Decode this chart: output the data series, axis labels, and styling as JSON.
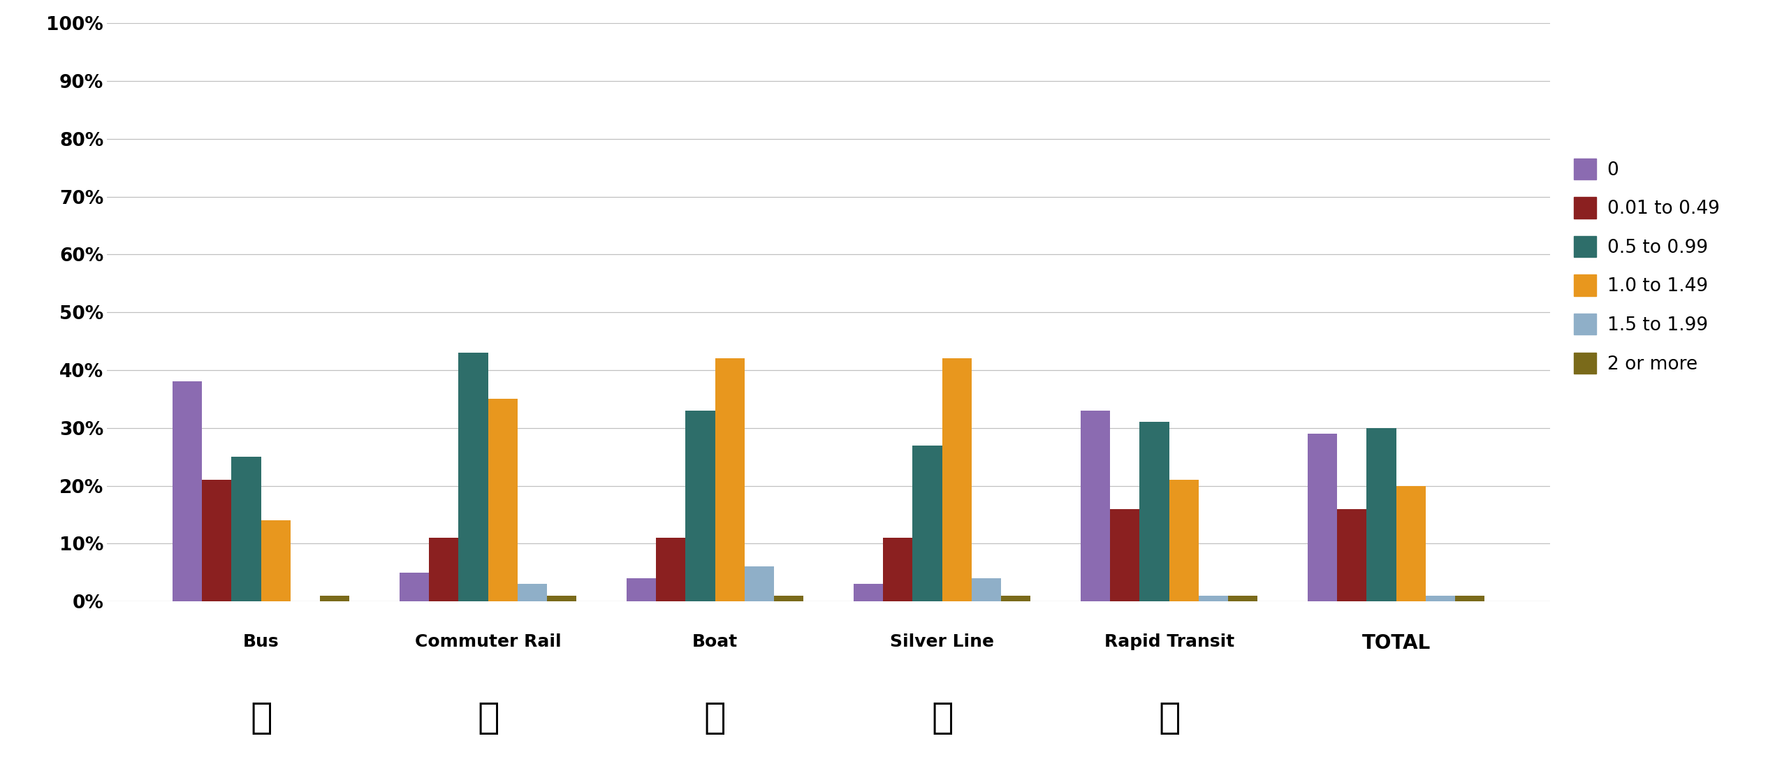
{
  "categories": [
    "Bus",
    "Commuter Rail",
    "Boat",
    "Silver Line",
    "Rapid Transit",
    "TOTAL"
  ],
  "series": {
    "0": [
      38,
      5,
      4,
      3,
      33,
      29
    ],
    "0.01 to 0.49": [
      21,
      11,
      11,
      11,
      16,
      16
    ],
    "0.5 to 0.99": [
      25,
      43,
      33,
      27,
      31,
      30
    ],
    "1.0 to 1.49": [
      14,
      35,
      42,
      42,
      21,
      20
    ],
    "1.5 to 1.99": [
      0,
      3,
      6,
      4,
      1,
      1
    ],
    "2 or more": [
      1,
      1,
      1,
      1,
      1,
      1
    ]
  },
  "colors": {
    "0": "#8B6BB1",
    "0.01 to 0.49": "#8B2020",
    "0.5 to 0.99": "#2E6E6A",
    "1.0 to 1.49": "#E8971E",
    "1.5 to 1.99": "#8FAFC8",
    "2 or more": "#7A6A1A"
  },
  "legend_labels": [
    "0",
    "0.01 to 0.49",
    "0.5 to 0.99",
    "1.0 to 1.49",
    "1.5 to 1.99",
    "2 or more"
  ],
  "ylim": [
    0,
    100
  ],
  "yticks": [
    0,
    10,
    20,
    30,
    40,
    50,
    60,
    70,
    80,
    90,
    100
  ],
  "ytick_labels": [
    "0%",
    "10%",
    "20%",
    "30%",
    "40%",
    "50%",
    "60%",
    "70%",
    "80%",
    "90%",
    "100%"
  ],
  "background_color": "#ffffff",
  "grid_color": "#c0c0c0",
  "bar_width": 0.13,
  "figsize": [
    25.51,
    11.04
  ],
  "dpi": 100
}
